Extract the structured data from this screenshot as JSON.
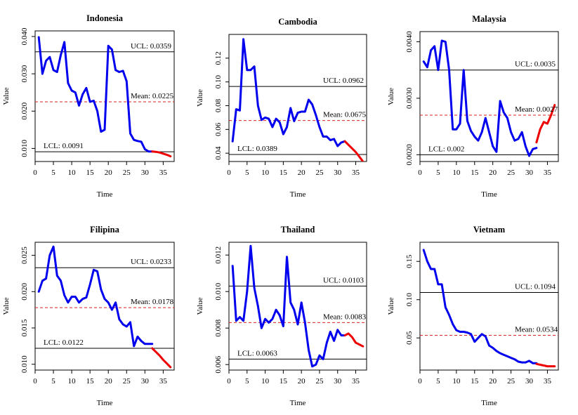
{
  "colors": {
    "series": "#0000ee",
    "forecast": "#ee0000",
    "mean_line": "#dd2222",
    "control_line": "#000000"
  },
  "chart_data": [
    {
      "type": "line",
      "title": "Indonesia",
      "xlabel": "Time",
      "ylabel": "Value",
      "xlim": [
        0,
        38
      ],
      "ylim": [
        0.0065,
        0.0415
      ],
      "xticks": [
        "0",
        "5",
        "10",
        "15",
        "20",
        "25",
        "30",
        "35"
      ],
      "yticks": [
        "0.010",
        "0.020",
        "0.030",
        "0.040"
      ],
      "ucl": 0.0359,
      "ucl_label": "UCL: 0.0359",
      "mean": 0.0225,
      "mean_label": "Mean: 0.0225",
      "lcl": 0.0091,
      "lcl_label": "LCL: 0.0091",
      "series": [
        {
          "x": [
            1,
            2,
            3,
            4,
            5,
            6,
            7,
            8,
            9,
            10,
            11,
            12,
            13,
            14,
            15,
            16,
            17,
            18,
            19,
            20,
            21,
            22,
            23,
            24,
            25,
            26,
            27,
            28,
            29,
            30,
            31,
            32
          ],
          "values": [
            0.0398,
            0.03,
            0.0335,
            0.0345,
            0.031,
            0.0305,
            0.035,
            0.0385,
            0.0275,
            0.0255,
            0.025,
            0.0215,
            0.0245,
            0.0262,
            0.0225,
            0.0228,
            0.02,
            0.0145,
            0.015,
            0.0375,
            0.0365,
            0.031,
            0.0305,
            0.0308,
            0.028,
            0.014,
            0.0123,
            0.012,
            0.0118,
            0.0098,
            0.0092,
            0.0092
          ]
        },
        {
          "x": [
            32,
            33,
            34,
            35,
            36,
            37
          ],
          "values": [
            0.0092,
            0.0091,
            0.0089,
            0.0086,
            0.0083,
            0.0079
          ]
        }
      ]
    },
    {
      "type": "line",
      "title": "Cambodia",
      "xlabel": "Time",
      "ylabel": "Value",
      "xlim": [
        0,
        38
      ],
      "ylim": [
        0.033,
        0.14
      ],
      "xticks": [
        "0",
        "5",
        "10",
        "15",
        "20",
        "25",
        "30",
        "35"
      ],
      "yticks": [
        "0.04",
        "0.06",
        "0.08",
        "0.10",
        "0.12"
      ],
      "ucl": 0.0962,
      "ucl_label": "UCL: 0.0962",
      "mean": 0.0675,
      "mean_label": "Mean: 0.0675",
      "lcl": 0.0389,
      "lcl_label": "LCL: 0.0389",
      "series": [
        {
          "x": [
            1,
            2,
            3,
            4,
            5,
            6,
            7,
            8,
            9,
            10,
            11,
            12,
            13,
            14,
            15,
            16,
            17,
            18,
            19,
            20,
            21,
            22,
            23,
            24,
            25,
            26,
            27,
            28,
            29,
            30,
            31,
            32
          ],
          "values": [
            0.05,
            0.077,
            0.076,
            0.136,
            0.11,
            0.11,
            0.113,
            0.08,
            0.068,
            0.07,
            0.069,
            0.062,
            0.069,
            0.066,
            0.056,
            0.062,
            0.078,
            0.067,
            0.074,
            0.075,
            0.075,
            0.085,
            0.081,
            0.072,
            0.062,
            0.054,
            0.054,
            0.051,
            0.052,
            0.046,
            0.049,
            0.05
          ]
        },
        {
          "x": [
            32,
            33,
            34,
            35,
            36,
            37
          ],
          "values": [
            0.05,
            0.047,
            0.044,
            0.041,
            0.037,
            0.033
          ]
        }
      ]
    },
    {
      "type": "line",
      "title": "Malaysia",
      "xlabel": "Time",
      "ylabel": "Value",
      "xlim": [
        0,
        38
      ],
      "ylim": [
        0.00188,
        0.00418
      ],
      "xticks": [
        "0",
        "5",
        "10",
        "15",
        "20",
        "25",
        "30",
        "35"
      ],
      "yticks": [
        "0.0020",
        "0.0030",
        "0.0040"
      ],
      "ucl": 0.0035,
      "ucl_label": "UCL: 0.0035",
      "mean": 0.0027,
      "mean_label": "Mean: 0.0027",
      "lcl": 0.002,
      "lcl_label": "LCL: 0.002",
      "series": [
        {
          "x": [
            1,
            2,
            3,
            4,
            5,
            6,
            7,
            8,
            9,
            10,
            11,
            12,
            13,
            14,
            15,
            16,
            17,
            18,
            19,
            20,
            21,
            22,
            23,
            24,
            25,
            26,
            27,
            28,
            29,
            30,
            31,
            32
          ],
          "values": [
            0.00365,
            0.00355,
            0.00385,
            0.00392,
            0.0035,
            0.00402,
            0.004,
            0.0035,
            0.00245,
            0.00245,
            0.00255,
            0.0035,
            0.0026,
            0.00242,
            0.00232,
            0.00225,
            0.0024,
            0.00265,
            0.0024,
            0.00215,
            0.00205,
            0.00295,
            0.00275,
            0.00265,
            0.0024,
            0.00225,
            0.00228,
            0.0024,
            0.00215,
            0.00198,
            0.0021,
            0.00212
          ]
        },
        {
          "x": [
            32,
            33,
            34,
            35,
            36,
            37
          ],
          "values": [
            0.00222,
            0.00245,
            0.00258,
            0.00255,
            0.0027,
            0.00288
          ]
        }
      ]
    },
    {
      "type": "line",
      "title": "Filipina",
      "xlabel": "Time",
      "ylabel": "Value",
      "xlim": [
        0,
        38
      ],
      "ylim": [
        0.0092,
        0.0268
      ],
      "xticks": [
        "0",
        "5",
        "10",
        "15",
        "20",
        "25",
        "30",
        "35"
      ],
      "yticks": [
        "0.010",
        "0.015",
        "0.020",
        "0.025"
      ],
      "ucl": 0.0233,
      "ucl_label": "UCL: 0.0233",
      "mean": 0.0178,
      "mean_label": "Mean: 0.0178",
      "lcl": 0.0122,
      "lcl_label": "LCL: 0.0122",
      "series": [
        {
          "x": [
            1,
            2,
            3,
            4,
            5,
            6,
            7,
            8,
            9,
            10,
            11,
            12,
            13,
            14,
            15,
            16,
            17,
            18,
            19,
            20,
            21,
            22,
            23,
            24,
            25,
            26,
            27,
            28,
            29,
            30,
            31,
            32
          ],
          "values": [
            0.02,
            0.0215,
            0.0218,
            0.025,
            0.0262,
            0.0222,
            0.0215,
            0.0195,
            0.0185,
            0.0193,
            0.0193,
            0.0185,
            0.019,
            0.0192,
            0.021,
            0.023,
            0.0228,
            0.0203,
            0.019,
            0.0185,
            0.0175,
            0.0185,
            0.0162,
            0.0155,
            0.0152,
            0.0158,
            0.0125,
            0.0138,
            0.0132,
            0.0128,
            0.0128,
            0.0128
          ]
        },
        {
          "x": [
            32,
            33,
            34,
            35,
            36,
            37
          ],
          "values": [
            0.0122,
            0.0117,
            0.0112,
            0.0106,
            0.0101,
            0.0096
          ]
        }
      ]
    },
    {
      "type": "line",
      "title": "Thailand",
      "xlabel": "Time",
      "ylabel": "Value",
      "xlim": [
        0,
        38
      ],
      "ylim": [
        0.0057,
        0.0127
      ],
      "xticks": [
        "0",
        "5",
        "10",
        "15",
        "20",
        "25",
        "30",
        "35"
      ],
      "yticks": [
        "0.006",
        "0.008",
        "0.010",
        "0.012"
      ],
      "ucl": 0.0103,
      "ucl_label": "UCL: 0.0103",
      "mean": 0.0083,
      "mean_label": "Mean: 0.0083",
      "lcl": 0.0063,
      "lcl_label": "LCL: 0.0063",
      "series": [
        {
          "x": [
            1,
            2,
            3,
            4,
            5,
            6,
            7,
            8,
            9,
            10,
            11,
            12,
            13,
            14,
            15,
            16,
            17,
            18,
            19,
            20,
            21,
            22,
            23,
            24,
            25,
            26,
            27,
            28,
            29,
            30,
            31,
            32
          ],
          "values": [
            0.0114,
            0.0084,
            0.0086,
            0.0084,
            0.01,
            0.0125,
            0.0102,
            0.0092,
            0.008,
            0.0085,
            0.0083,
            0.0085,
            0.009,
            0.0087,
            0.0081,
            0.0119,
            0.0094,
            0.009,
            0.0082,
            0.0094,
            0.0083,
            0.0068,
            0.0059,
            0.006,
            0.0065,
            0.0063,
            0.0072,
            0.0078,
            0.0073,
            0.0079,
            0.0076,
            0.0076
          ]
        },
        {
          "x": [
            32,
            33,
            34,
            35,
            36,
            37
          ],
          "values": [
            0.0076,
            0.0077,
            0.0075,
            0.0072,
            0.0071,
            0.007
          ]
        }
      ]
    },
    {
      "type": "line",
      "title": "Vietnam",
      "xlabel": "Time",
      "ylabel": "Value",
      "xlim": [
        0,
        38
      ],
      "ylim": [
        0.008,
        0.175
      ],
      "xticks": [
        "0",
        "5",
        "10",
        "15",
        "20",
        "25",
        "30",
        "35"
      ],
      "yticks": [
        "0.05",
        "0.10",
        "0.15"
      ],
      "ucl": 0.1094,
      "ucl_label": "UCL: 0.1094",
      "mean": 0.0534,
      "mean_label": "Mean: 0.0534",
      "lcl": null,
      "lcl_label": "",
      "series": [
        {
          "x": [
            1,
            2,
            3,
            4,
            5,
            6,
            7,
            8,
            9,
            10,
            11,
            12,
            13,
            14,
            15,
            16,
            17,
            18,
            19,
            20,
            21,
            22,
            23,
            24,
            25,
            26,
            27,
            28,
            29,
            30,
            31,
            32
          ],
          "values": [
            0.165,
            0.15,
            0.14,
            0.14,
            0.12,
            0.12,
            0.09,
            0.08,
            0.068,
            0.06,
            0.058,
            0.058,
            0.057,
            0.055,
            0.045,
            0.05,
            0.055,
            0.052,
            0.04,
            0.037,
            0.033,
            0.03,
            0.028,
            0.026,
            0.024,
            0.022,
            0.019,
            0.018,
            0.018,
            0.02,
            0.017,
            0.017
          ]
        },
        {
          "x": [
            32,
            33,
            34,
            35,
            36,
            37
          ],
          "values": [
            0.016,
            0.015,
            0.014,
            0.013,
            0.013,
            0.013
          ]
        }
      ]
    }
  ]
}
